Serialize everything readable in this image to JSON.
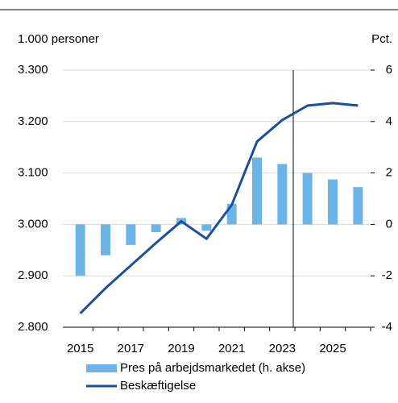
{
  "chart_data": {
    "type": "bar_line",
    "y_label": "1.000 personer",
    "y2_label": "Pct.",
    "categories": [
      "2015",
      null,
      "2017",
      null,
      "2019",
      null,
      "2021",
      null,
      "2023",
      null,
      "2025",
      null
    ],
    "series": [
      {
        "name": "Pres på arbejdsmarkedet (h. akse)",
        "type": "bar",
        "axis": "y2",
        "color": "#6cb4e8",
        "values": [
          -2.0,
          -1.2,
          -0.8,
          -0.3,
          0.25,
          -0.25,
          0.8,
          2.6,
          2.35,
          2.0,
          1.75,
          1.45
        ]
      },
      {
        "name": "Beskæftigelse",
        "type": "line",
        "axis": "y",
        "color": "#1a4f9c",
        "values": [
          2827,
          2876,
          2920,
          2964,
          3006,
          2972,
          3038,
          3161,
          3203,
          3231,
          3236,
          3231
        ]
      }
    ],
    "ylim": [
      2800,
      3300
    ],
    "yticks": [
      {
        "value": 2800,
        "label": "2.800"
      },
      {
        "value": 2900,
        "label": "2.900"
      },
      {
        "value": 3000,
        "label": "3.000"
      },
      {
        "value": 3100,
        "label": "3.100"
      },
      {
        "value": 3200,
        "label": "3.200"
      },
      {
        "value": 3300,
        "label": "3.300"
      }
    ],
    "y2lim": [
      -4,
      6
    ],
    "y2ticks": [
      -4,
      -2,
      0,
      2,
      4,
      6
    ],
    "grid": true
  }
}
